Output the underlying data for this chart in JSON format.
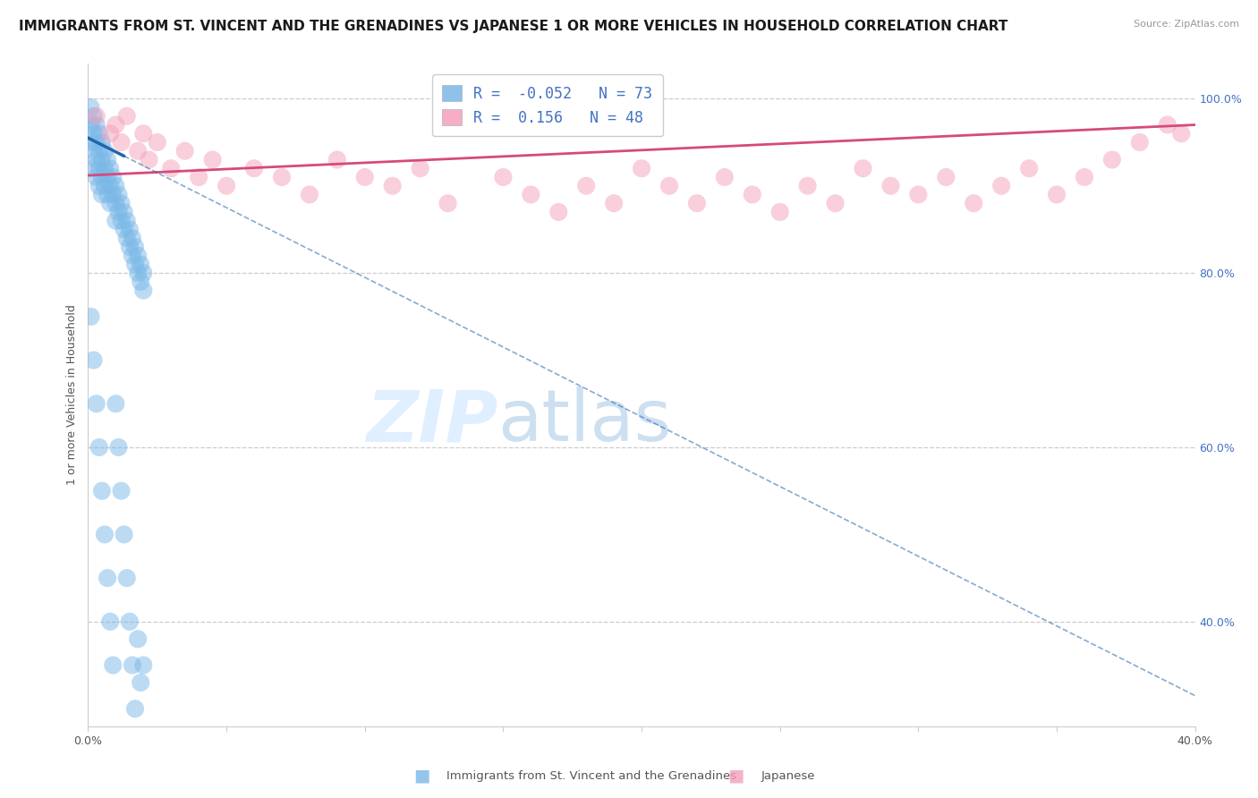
{
  "title": "IMMIGRANTS FROM ST. VINCENT AND THE GRENADINES VS JAPANESE 1 OR MORE VEHICLES IN HOUSEHOLD CORRELATION CHART",
  "source": "Source: ZipAtlas.com",
  "ylabel": "1 or more Vehicles in Household",
  "blue_label": "Immigrants from St. Vincent and the Grenadines",
  "pink_label": "Japanese",
  "blue_R": -0.052,
  "blue_N": 73,
  "pink_R": 0.156,
  "pink_N": 48,
  "blue_color": "#7ab8e8",
  "pink_color": "#f4a0bb",
  "blue_trend_color": "#2166ac",
  "pink_trend_color": "#d64a7a",
  "grid_color": "#cccccc",
  "background_color": "#ffffff",
  "right_tick_color": "#4472c4",
  "xlim_min": 0.0,
  "xlim_max": 0.4,
  "ylim_min": 0.28,
  "ylim_max": 1.04,
  "x_ticks": [
    0.0,
    0.05,
    0.1,
    0.15,
    0.2,
    0.25,
    0.3,
    0.35,
    0.4
  ],
  "y_ticks_right": [
    0.4,
    0.6,
    0.8,
    1.0
  ],
  "title_fontsize": 11,
  "source_fontsize": 8,
  "axis_label_fontsize": 9,
  "tick_fontsize": 9,
  "legend_fontsize": 12,
  "blue_x": [
    0.001,
    0.001,
    0.001,
    0.002,
    0.002,
    0.002,
    0.002,
    0.003,
    0.003,
    0.003,
    0.003,
    0.004,
    0.004,
    0.004,
    0.004,
    0.005,
    0.005,
    0.005,
    0.005,
    0.006,
    0.006,
    0.006,
    0.007,
    0.007,
    0.007,
    0.008,
    0.008,
    0.008,
    0.009,
    0.009,
    0.01,
    0.01,
    0.01,
    0.011,
    0.011,
    0.012,
    0.012,
    0.013,
    0.013,
    0.014,
    0.014,
    0.015,
    0.015,
    0.016,
    0.016,
    0.017,
    0.017,
    0.018,
    0.018,
    0.019,
    0.019,
    0.02,
    0.02,
    0.001,
    0.002,
    0.003,
    0.004,
    0.005,
    0.006,
    0.007,
    0.008,
    0.009,
    0.01,
    0.011,
    0.012,
    0.013,
    0.014,
    0.015,
    0.016,
    0.017,
    0.018,
    0.019,
    0.02
  ],
  "blue_y": [
    0.99,
    0.97,
    0.95,
    0.98,
    0.96,
    0.94,
    0.92,
    0.97,
    0.95,
    0.93,
    0.91,
    0.96,
    0.94,
    0.92,
    0.9,
    0.95,
    0.93,
    0.91,
    0.89,
    0.94,
    0.92,
    0.9,
    0.93,
    0.91,
    0.89,
    0.92,
    0.9,
    0.88,
    0.91,
    0.89,
    0.9,
    0.88,
    0.86,
    0.89,
    0.87,
    0.88,
    0.86,
    0.87,
    0.85,
    0.86,
    0.84,
    0.85,
    0.83,
    0.84,
    0.82,
    0.83,
    0.81,
    0.82,
    0.8,
    0.81,
    0.79,
    0.8,
    0.78,
    0.75,
    0.7,
    0.65,
    0.6,
    0.55,
    0.5,
    0.45,
    0.4,
    0.35,
    0.65,
    0.6,
    0.55,
    0.5,
    0.45,
    0.4,
    0.35,
    0.3,
    0.38,
    0.33,
    0.35
  ],
  "pink_x": [
    0.003,
    0.008,
    0.01,
    0.012,
    0.014,
    0.018,
    0.02,
    0.022,
    0.025,
    0.03,
    0.035,
    0.04,
    0.045,
    0.05,
    0.06,
    0.07,
    0.08,
    0.09,
    0.1,
    0.11,
    0.12,
    0.13,
    0.15,
    0.16,
    0.17,
    0.18,
    0.19,
    0.2,
    0.21,
    0.22,
    0.23,
    0.24,
    0.25,
    0.26,
    0.27,
    0.28,
    0.29,
    0.3,
    0.31,
    0.32,
    0.33,
    0.34,
    0.35,
    0.36,
    0.37,
    0.38,
    0.39,
    0.395
  ],
  "pink_y": [
    0.98,
    0.96,
    0.97,
    0.95,
    0.98,
    0.94,
    0.96,
    0.93,
    0.95,
    0.92,
    0.94,
    0.91,
    0.93,
    0.9,
    0.92,
    0.91,
    0.89,
    0.93,
    0.91,
    0.9,
    0.92,
    0.88,
    0.91,
    0.89,
    0.87,
    0.9,
    0.88,
    0.92,
    0.9,
    0.88,
    0.91,
    0.89,
    0.87,
    0.9,
    0.88,
    0.92,
    0.9,
    0.89,
    0.91,
    0.88,
    0.9,
    0.92,
    0.89,
    0.91,
    0.93,
    0.95,
    0.97,
    0.96
  ]
}
